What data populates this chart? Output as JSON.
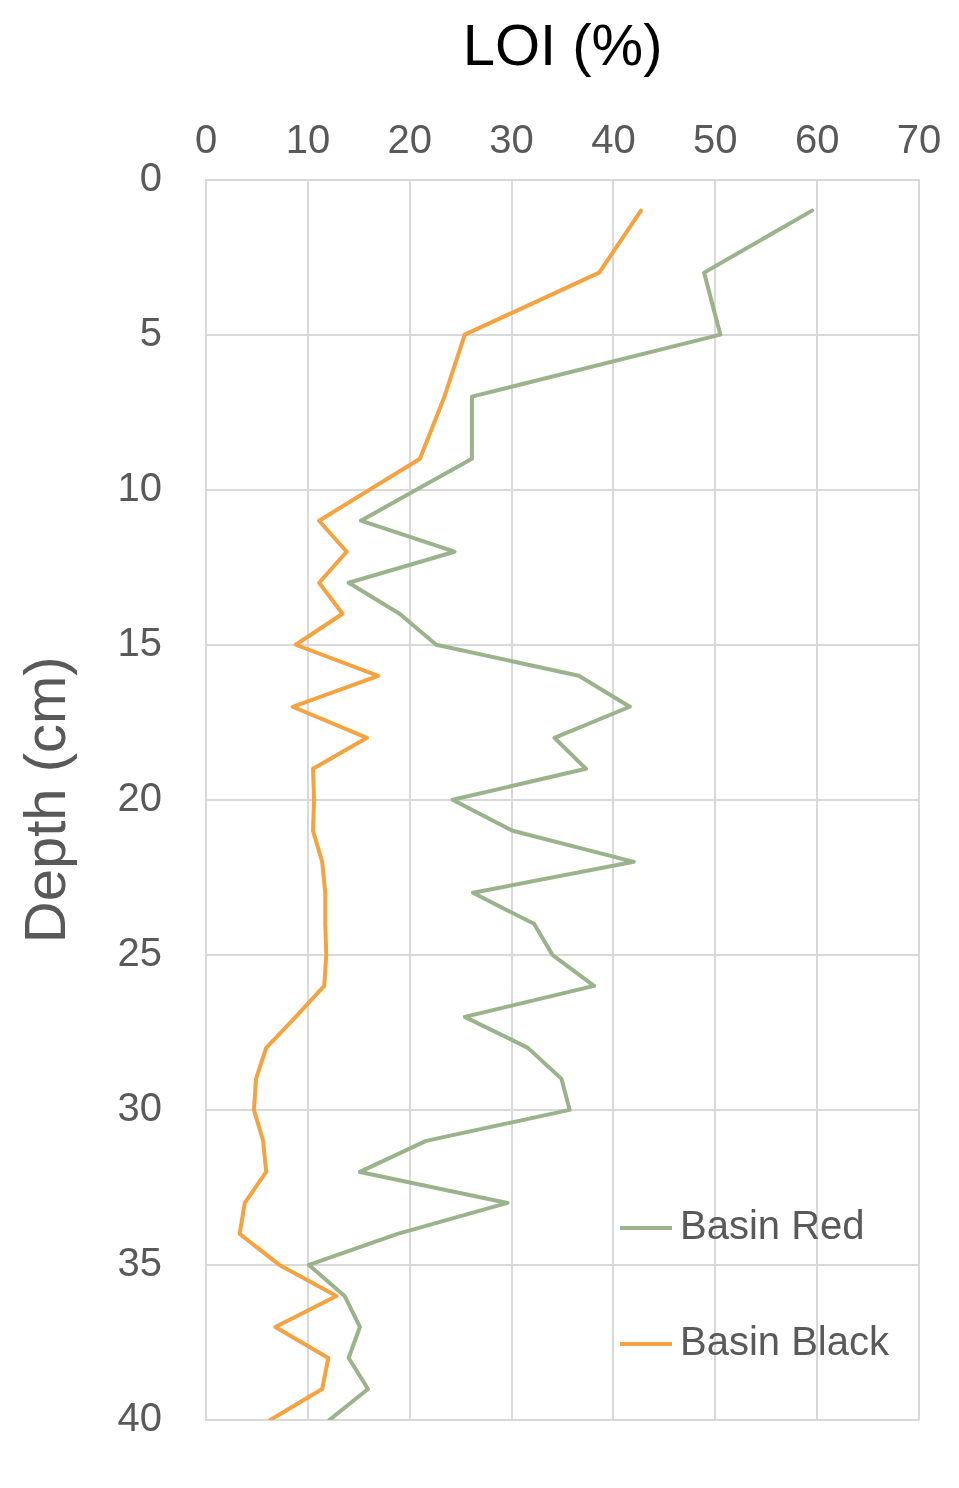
{
  "chart_data": {
    "type": "line",
    "xlabel": "LOI (%)",
    "ylabel": "Depth (cm)",
    "xlim": [
      0,
      70
    ],
    "xticks": [
      0,
      10,
      20,
      30,
      40,
      50,
      60,
      70
    ],
    "ylim": [
      40,
      0
    ],
    "yticks": [
      0,
      5,
      10,
      15,
      20,
      25,
      30,
      35,
      40
    ],
    "grid": true,
    "legend": "bottom right",
    "marker": "none",
    "line_style": "solid",
    "series": [
      {
        "name": "Basin Red",
        "color": "#9bb38b",
        "x": [
          59.5,
          48.9,
          50.5,
          26.1,
          26.1,
          15.2,
          24.4,
          14.0,
          19.0,
          22.6,
          36.6,
          41.6,
          34.2,
          37.3,
          24.2,
          30.1,
          42.0,
          26.2,
          32.2,
          34.0,
          38.1,
          25.4,
          31.6,
          34.9,
          35.7,
          21.6,
          15.1,
          29.6,
          18.8,
          10.1,
          13.6,
          15.1,
          14.0,
          15.9,
          12.1
        ],
        "values": [
          1,
          3,
          5,
          7,
          9,
          11,
          12,
          13,
          14,
          15,
          16,
          17,
          18,
          19,
          20,
          21,
          22,
          23,
          24,
          25,
          26,
          27,
          28,
          29,
          30,
          31,
          32,
          33,
          34,
          35,
          36,
          37,
          38,
          39,
          40
        ]
      },
      {
        "name": "Basin Black",
        "color": "#f4a340",
        "x": [
          42.7,
          38.6,
          25.4,
          23.4,
          21.0,
          11.1,
          13.8,
          11.1,
          13.4,
          8.8,
          16.9,
          8.5,
          15.8,
          10.5,
          10.6,
          10.5,
          11.4,
          11.7,
          11.7,
          11.8,
          11.6,
          8.8,
          5.9,
          4.9,
          4.7,
          5.6,
          5.9,
          3.8,
          3.3,
          7.2,
          12.8,
          6.8,
          12.0,
          11.4,
          6.3
        ],
        "values": [
          1,
          3,
          5,
          7,
          9,
          11,
          12,
          13,
          14,
          15,
          16,
          17,
          18,
          19,
          20,
          21,
          22,
          23,
          24,
          25,
          26,
          27,
          28,
          29,
          30,
          31,
          32,
          33,
          34,
          35,
          36,
          37,
          38,
          39,
          40
        ]
      }
    ]
  }
}
